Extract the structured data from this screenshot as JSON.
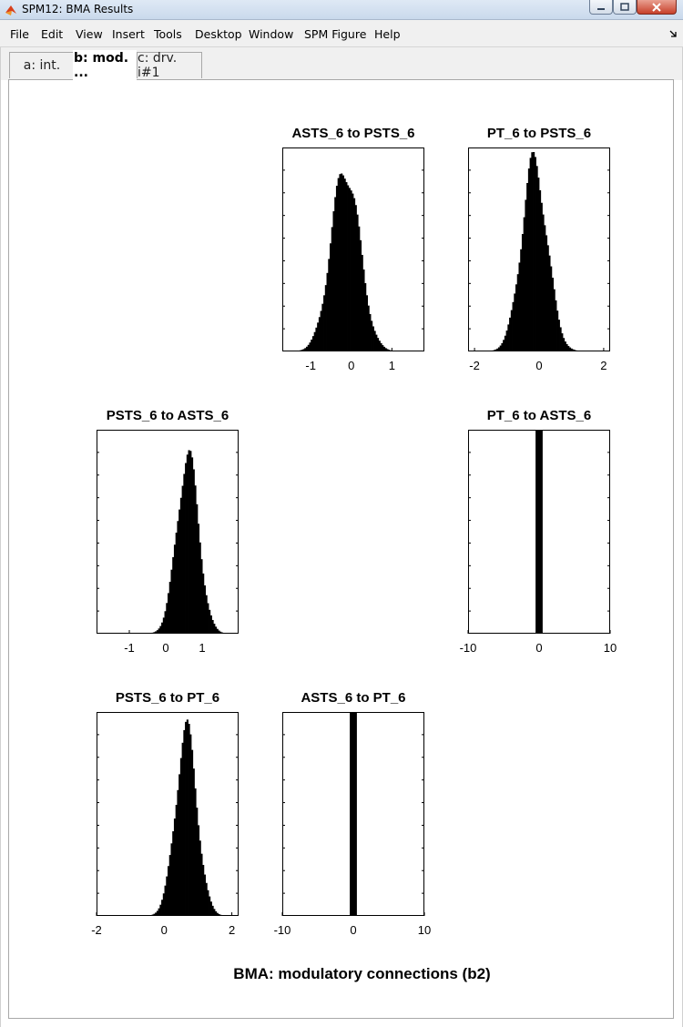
{
  "window": {
    "title": "SPM12: BMA Results"
  },
  "menu": [
    {
      "label": "File"
    },
    {
      "label": "Edit"
    },
    {
      "label": "View"
    },
    {
      "label": "Insert"
    },
    {
      "label": "Tools"
    },
    {
      "label": "Desktop"
    },
    {
      "label": "Window"
    },
    {
      "label": "SPM Figure"
    },
    {
      "label": "Help"
    }
  ],
  "tabs": [
    {
      "label": "a: int.",
      "active": false
    },
    {
      "label": "b: mod. ...",
      "active": true
    },
    {
      "label": "c: drv. i#1",
      "active": false
    }
  ],
  "figure_title": "BMA: modulatory connections (b2)",
  "chart_data": [
    {
      "type": "bar",
      "title": "ASTS_6 to PSTS_6",
      "xlim": [
        -1.7,
        1.8
      ],
      "xticks": [
        -1,
        0,
        1
      ],
      "shape": {
        "kind": "gaussian",
        "center": -0.15,
        "sigma": 0.35,
        "peak": 0.9,
        "skew": 0.0
      }
    },
    {
      "type": "bar",
      "title": "PT_6 to PSTS_6",
      "xlim": [
        -2.2,
        2.2
      ],
      "xticks": [
        -2,
        0,
        2
      ],
      "shape": {
        "kind": "gaussian",
        "center": -0.15,
        "sigma": 0.4,
        "peak": 0.92,
        "skew": 0.0
      }
    },
    {
      "type": "bar",
      "title": "PSTS_6 to ASTS_6",
      "xlim": [
        -1.9,
        2.0
      ],
      "xticks": [
        -1,
        0,
        1
      ],
      "shape": {
        "kind": "gaussian",
        "center": 0.6,
        "sigma": 0.3,
        "peak": 0.87,
        "skew": 0.0
      }
    },
    {
      "type": "bar",
      "title": "PT_6 to ASTS_6",
      "xlim": [
        -10,
        10
      ],
      "xticks": [
        -10,
        0,
        10
      ],
      "shape": {
        "kind": "spike",
        "center": 0,
        "halfwidth": 0.5
      }
    },
    {
      "type": "bar",
      "title": "PSTS_6 to PT_6",
      "xlim": [
        -2.0,
        2.2
      ],
      "xticks": [
        -2,
        0,
        2
      ],
      "shape": {
        "kind": "gaussian",
        "center": 0.65,
        "sigma": 0.32,
        "peak": 0.9,
        "skew": 0.0
      }
    },
    {
      "type": "bar",
      "title": "ASTS_6 to PT_6",
      "xlim": [
        -10,
        10
      ],
      "xticks": [
        -10,
        0,
        10
      ],
      "shape": {
        "kind": "spike",
        "center": 0,
        "halfwidth": 0.5
      }
    }
  ]
}
